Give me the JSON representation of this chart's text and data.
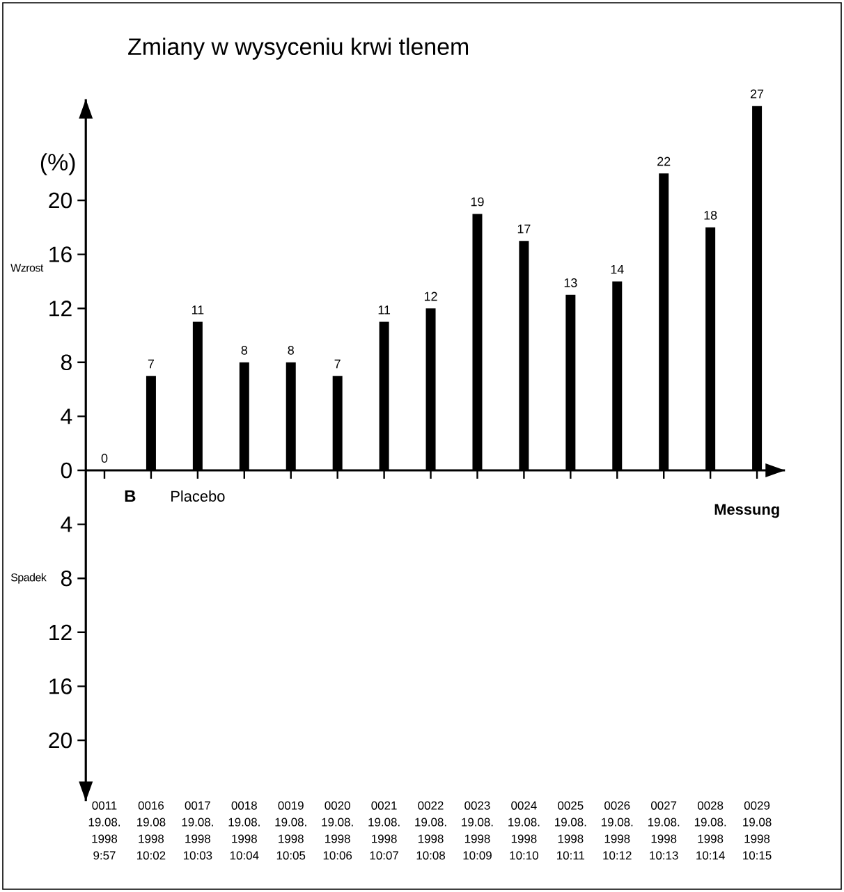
{
  "chart_data": {
    "type": "bar",
    "title": "Zmiany w wysyceniu krwi tlenem",
    "xlabel": "Messung",
    "ylabel": "(%)",
    "categories": [
      "0011 19.08. 1998 9:57",
      "0016 19.08 1998 10:02",
      "0017 19.08. 1998 10:03",
      "0018 19.08. 1998 10:04",
      "0019 19.08. 1998 10:05",
      "0020 19.08. 1998 10:06",
      "0021 19.08. 1998 10:07",
      "0022 19.08. 1998 10:08",
      "0023 19.08. 1998 10:09",
      "0024 19.08. 1998 10:10",
      "0025 19.08. 1998 10:11",
      "0026 19.08. 1998 10:12",
      "0027 19.08. 1998 10:13",
      "0028 19.08. 1998 10:14",
      "0029 19.08 1998 10:15"
    ],
    "values": [
      0,
      7,
      11,
      8,
      8,
      7,
      11,
      12,
      19,
      17,
      13,
      14,
      22,
      18,
      27
    ],
    "color": "#000000",
    "data_labels": true,
    "ylim": [
      -24.5,
      27.5
    ],
    "yticks": [
      {
        "value": -20,
        "label": "20"
      },
      {
        "value": -16,
        "label": "16"
      },
      {
        "value": -12,
        "label": "12"
      },
      {
        "value": -8,
        "label": "8"
      },
      {
        "value": -4,
        "label": "4"
      },
      0,
      4,
      8,
      12,
      16,
      20
    ],
    "annotations": [
      "Wzrost",
      "Spadek",
      "B",
      "Placebo"
    ]
  }
}
